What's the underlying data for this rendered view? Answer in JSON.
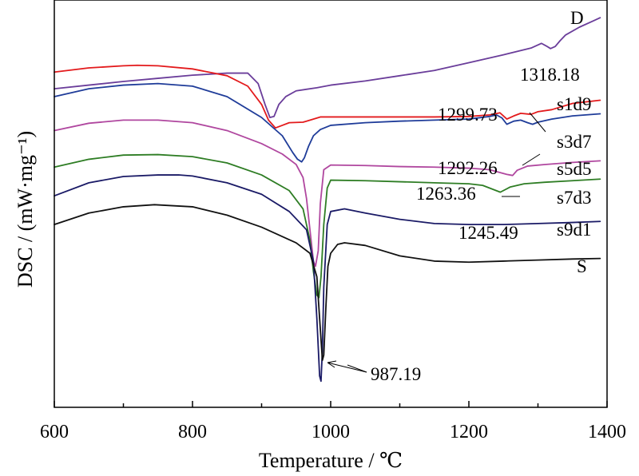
{
  "chart_data": {
    "type": "line",
    "xlabel": "Temperature / ℃",
    "ylabel": "DSC / (mW·mg⁻¹)",
    "xlim": [
      600,
      1400
    ],
    "xticks": [
      "600",
      "800",
      "1000",
      "1200",
      "1400"
    ],
    "grid": false,
    "legend": "none",
    "series": [
      {
        "name": "D",
        "color": "#6a3d9a",
        "offset": 0,
        "x": [
          600,
          650,
          700,
          750,
          800,
          850,
          880,
          895,
          905,
          912,
          918,
          925,
          935,
          950,
          980,
          1000,
          1050,
          1100,
          1150,
          1200,
          1250,
          1290,
          1305,
          1312,
          1318.18,
          1325,
          1332,
          1340,
          1360,
          1380,
          1390
        ],
        "y": [
          -0.4,
          -0.33,
          -0.26,
          -0.2,
          -0.14,
          -0.1,
          -0.1,
          -0.3,
          -0.7,
          -0.95,
          -0.93,
          -0.7,
          -0.55,
          -0.44,
          -0.38,
          -0.33,
          -0.25,
          -0.15,
          -0.05,
          0.1,
          0.25,
          0.38,
          0.47,
          0.42,
          0.37,
          0.41,
          0.52,
          0.63,
          0.78,
          0.9,
          0.96
        ]
      },
      {
        "name": "s1d9",
        "color": "#e31a1c",
        "offset": 0,
        "x": [
          600,
          650,
          700,
          720,
          750,
          800,
          850,
          880,
          900,
          910,
          920,
          930,
          940,
          960,
          975,
          985,
          1000,
          1050,
          1100,
          1150,
          1200,
          1230,
          1245,
          1255,
          1265,
          1275,
          1290,
          1299.73,
          1320,
          1350,
          1390
        ],
        "y": [
          -0.08,
          0.0,
          0.04,
          0.05,
          0.04,
          -0.02,
          -0.15,
          -0.35,
          -0.7,
          -1.0,
          -1.15,
          -1.1,
          -1.05,
          -1.04,
          -0.98,
          -0.94,
          -0.94,
          -0.94,
          -0.94,
          -0.94,
          -0.93,
          -0.9,
          -0.86,
          -0.98,
          -0.92,
          -0.87,
          -0.89,
          -0.84,
          -0.8,
          -0.68,
          -0.62
        ]
      },
      {
        "name": "s3d7",
        "color": "#1f3c99",
        "offset": 0,
        "x": [
          600,
          650,
          700,
          750,
          800,
          850,
          900,
          930,
          945,
          952,
          958,
          962,
          968,
          975,
          985,
          1000,
          1050,
          1100,
          1150,
          1200,
          1230,
          1240,
          1248,
          1255,
          1265,
          1275,
          1285,
          1292.26,
          1300,
          1320,
          1350,
          1390
        ],
        "y": [
          -0.55,
          -0.4,
          -0.33,
          -0.3,
          -0.35,
          -0.55,
          -0.95,
          -1.3,
          -1.62,
          -1.75,
          -1.8,
          -1.72,
          -1.5,
          -1.3,
          -1.18,
          -1.1,
          -1.05,
          -1.02,
          -1.0,
          -0.98,
          -0.93,
          -0.9,
          -0.96,
          -1.08,
          -1.02,
          -1.0,
          -1.05,
          -1.08,
          -1.04,
          -0.98,
          -0.92,
          -0.88
        ]
      },
      {
        "name": "s5d5",
        "color": "#b0479f",
        "offset": 0,
        "x": [
          600,
          650,
          700,
          750,
          800,
          850,
          900,
          930,
          950,
          960,
          965,
          970,
          975,
          978,
          982,
          985,
          990,
          1000,
          1050,
          1100,
          1150,
          1200,
          1230,
          1255,
          1263.36,
          1270,
          1285,
          1310,
          1350,
          1390
        ],
        "y": [
          -1.2,
          -1.06,
          -1.0,
          -1.0,
          -1.05,
          -1.2,
          -1.45,
          -1.65,
          -1.85,
          -2.1,
          -2.5,
          -3.1,
          -3.7,
          -3.8,
          -3.5,
          -2.6,
          -1.95,
          -1.86,
          -1.87,
          -1.89,
          -1.9,
          -1.92,
          -1.95,
          -2.04,
          -2.06,
          -1.96,
          -1.88,
          -1.85,
          -1.81,
          -1.78
        ]
      },
      {
        "name": "s7d3",
        "color": "#2e7d24",
        "offset": 0,
        "x": [
          600,
          650,
          700,
          750,
          800,
          850,
          900,
          940,
          960,
          970,
          975,
          980,
          983,
          986,
          990,
          995,
          1000,
          1050,
          1100,
          1150,
          1200,
          1220,
          1245.49,
          1260,
          1280,
          1310,
          1350,
          1390
        ],
        "y": [
          -1.9,
          -1.75,
          -1.67,
          -1.66,
          -1.7,
          -1.82,
          -2.05,
          -2.35,
          -2.7,
          -3.3,
          -3.9,
          -4.35,
          -4.4,
          -4.0,
          -3.0,
          -2.3,
          -2.15,
          -2.16,
          -2.18,
          -2.2,
          -2.22,
          -2.25,
          -2.38,
          -2.28,
          -2.22,
          -2.19,
          -2.16,
          -2.13
        ]
      },
      {
        "name": "s9d1",
        "color": "#1a1a66",
        "offset": 0,
        "x": [
          600,
          650,
          700,
          750,
          780,
          800,
          850,
          900,
          940,
          965,
          975,
          980,
          984,
          986,
          988,
          990,
          995,
          1000,
          1020,
          1050,
          1100,
          1150,
          1200,
          1250,
          1300,
          1350,
          1390
        ],
        "y": [
          -2.45,
          -2.2,
          -2.08,
          -2.05,
          -2.05,
          -2.07,
          -2.2,
          -2.42,
          -2.75,
          -3.1,
          -3.7,
          -4.8,
          -5.9,
          -6.0,
          -5.4,
          -4.2,
          -3.0,
          -2.75,
          -2.7,
          -2.78,
          -2.9,
          -2.98,
          -3.0,
          -3.0,
          -2.98,
          -2.96,
          -2.94
        ]
      },
      {
        "name": "S",
        "color": "#111111",
        "offset": 0,
        "x": [
          600,
          650,
          700,
          745,
          800,
          850,
          900,
          950,
          970,
          980,
          985,
          988,
          990,
          993,
          996,
          1000,
          1010,
          1020,
          1050,
          1100,
          1150,
          1200,
          1250,
          1300,
          1350,
          1390
        ],
        "y": [
          -3.0,
          -2.78,
          -2.66,
          -2.62,
          -2.66,
          -2.82,
          -3.05,
          -3.35,
          -3.55,
          -4.0,
          -5.0,
          -5.6,
          -5.5,
          -4.6,
          -3.8,
          -3.55,
          -3.38,
          -3.35,
          -3.4,
          -3.6,
          -3.7,
          -3.72,
          -3.7,
          -3.68,
          -3.66,
          -3.65
        ]
      }
    ],
    "series_labels": [
      {
        "text": "D"
      },
      {
        "text": "s1d9"
      },
      {
        "text": "s3d7"
      },
      {
        "text": "s5d5"
      },
      {
        "text": "s7d3"
      },
      {
        "text": "s9d1"
      },
      {
        "text": "S"
      }
    ],
    "annotations": [
      {
        "text": "1318.18"
      },
      {
        "text": "1299.73"
      },
      {
        "text": "1292.26"
      },
      {
        "text": "1263.36"
      },
      {
        "text": "1245.49"
      },
      {
        "text": "987.19"
      }
    ]
  }
}
